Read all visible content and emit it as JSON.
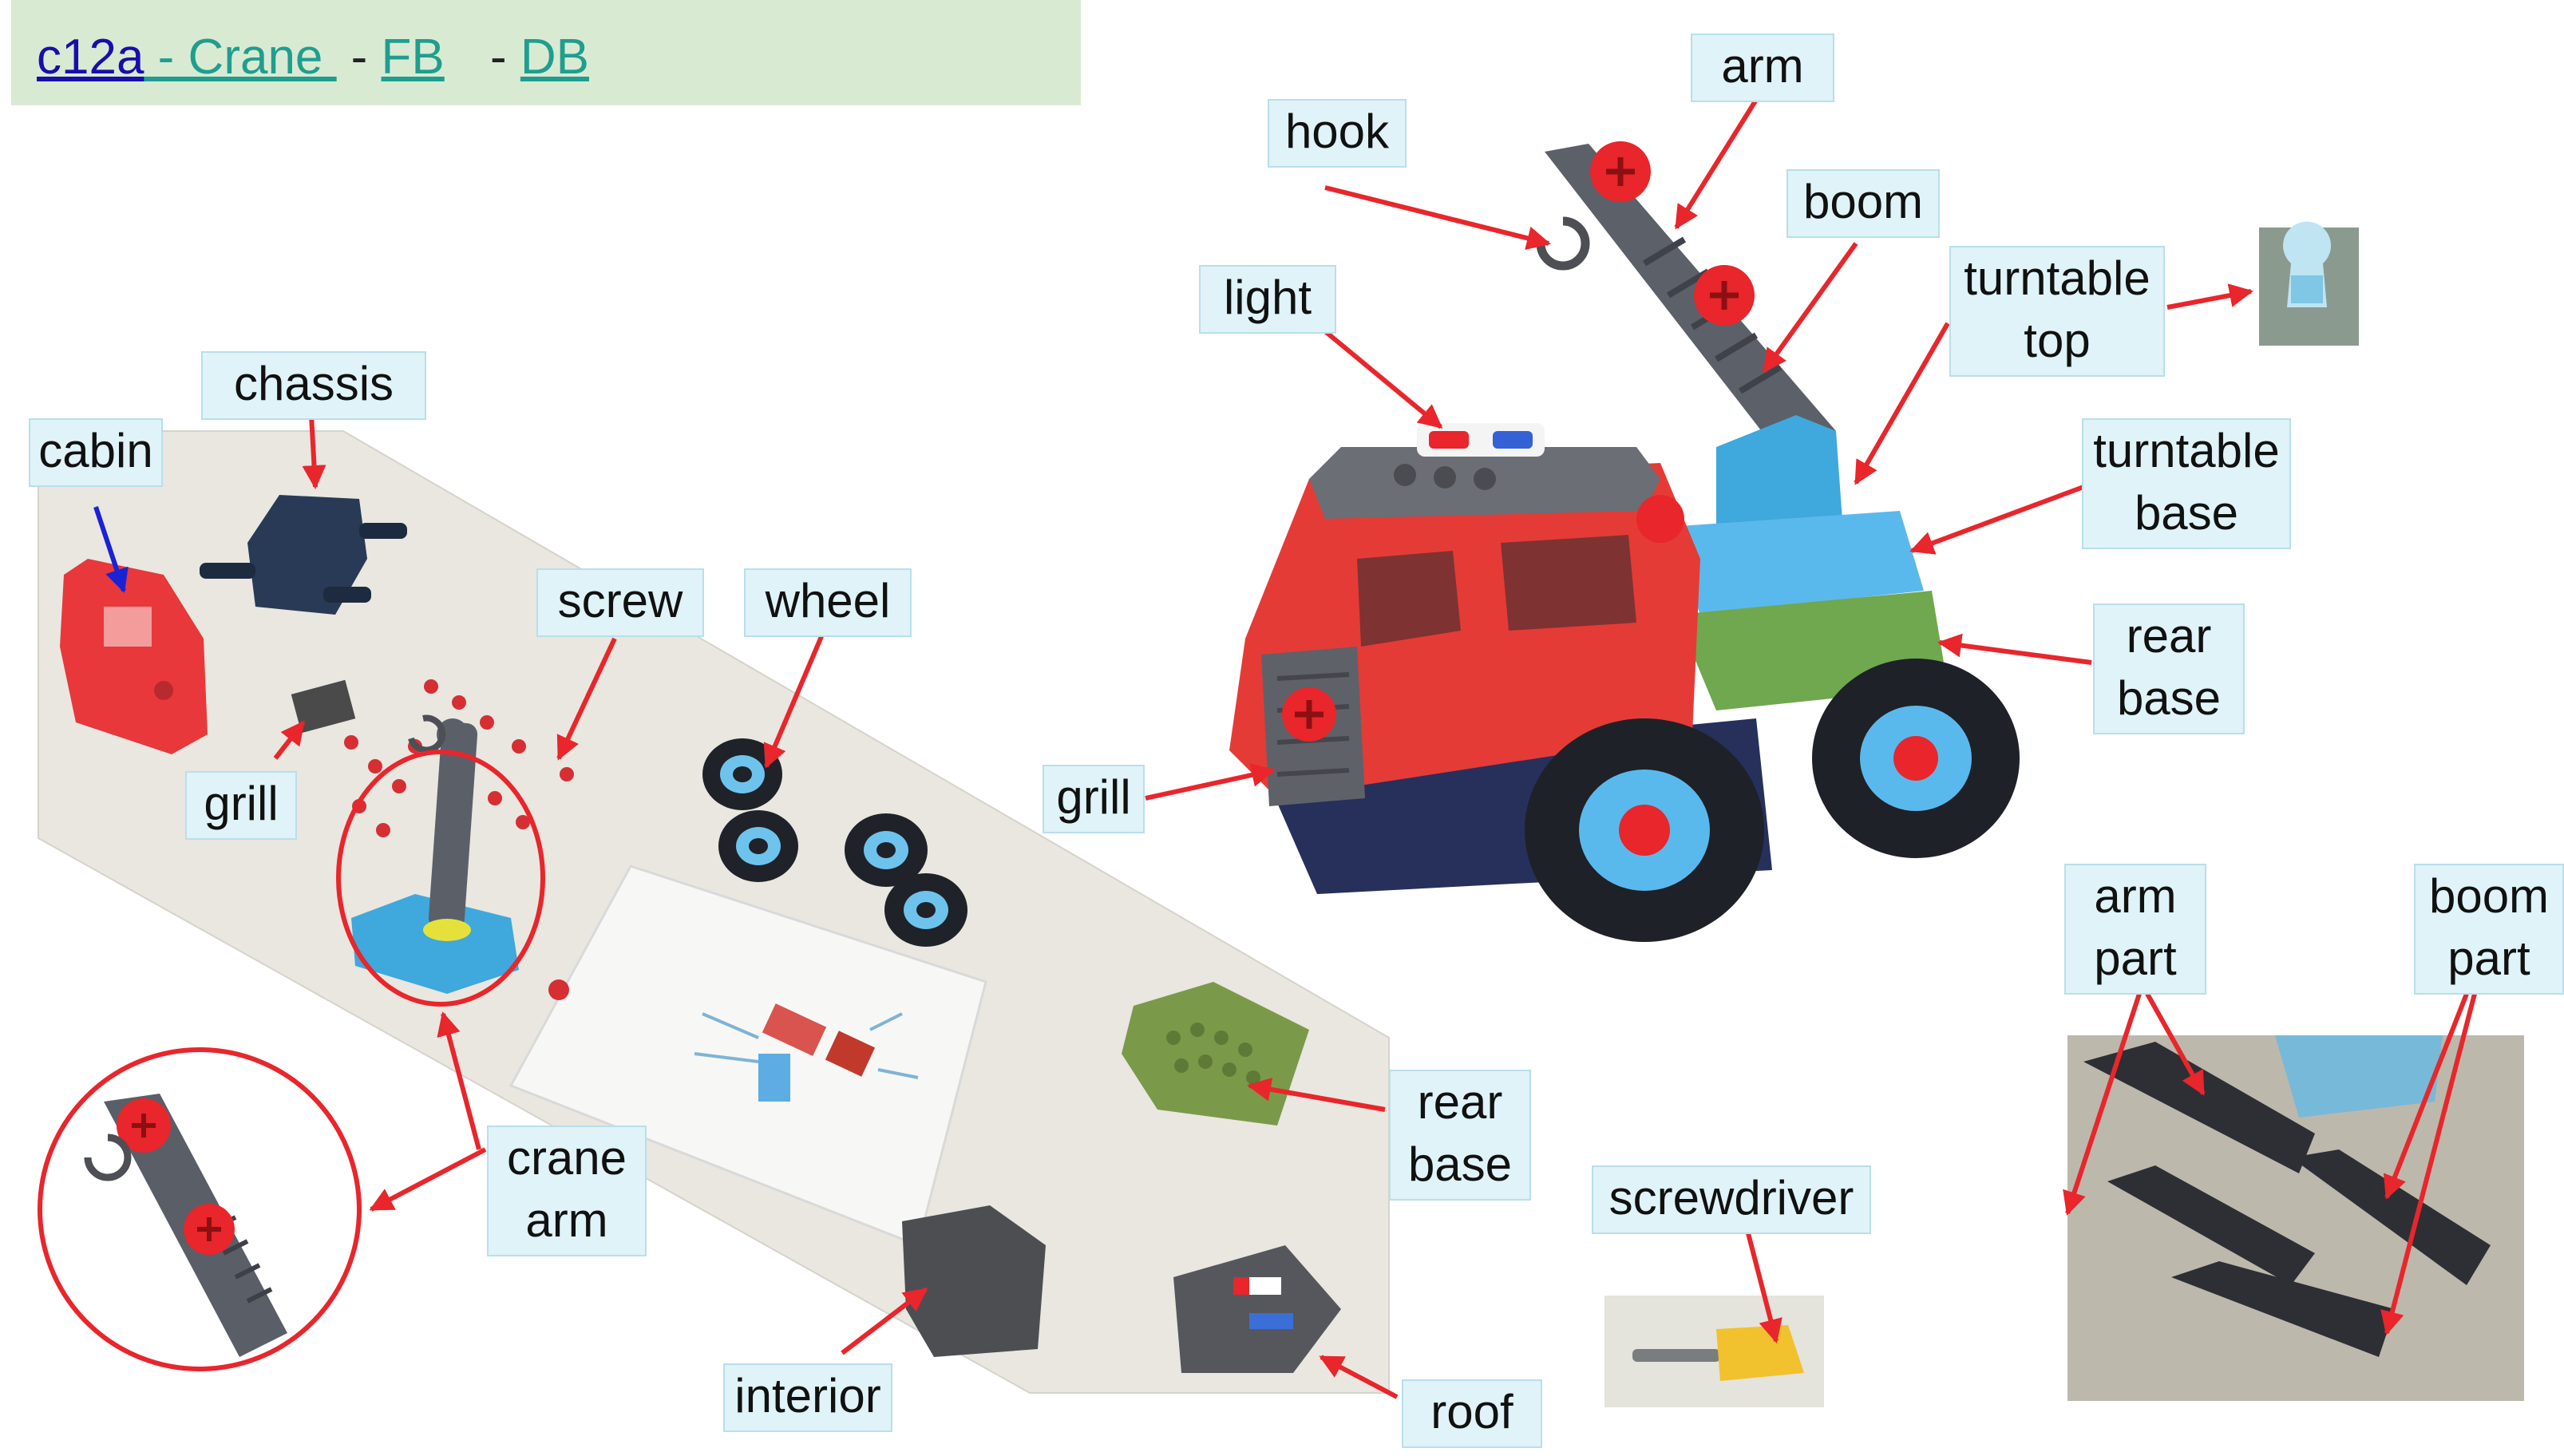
{
  "header": {
    "id_link": "c12a",
    "crane_link": " - Crane ",
    "sep1": " - ",
    "fb_link": "FB",
    "sep2": " - ",
    "db_link": "DB"
  },
  "labels": {
    "cabin": "cabin",
    "chassis": "chassis",
    "screw": "screw",
    "wheel": "wheel",
    "grill_left": "grill",
    "crane_arm_1": "crane",
    "crane_arm_2": "arm",
    "rear_base_left_1": "rear",
    "rear_base_left_2": "base",
    "interior": "interior",
    "roof": "roof",
    "hook": "hook",
    "arm": "arm",
    "boom": "boom",
    "light": "light",
    "turntable_top_1": "turntable",
    "turntable_top_2": "top",
    "turntable_base_1": "turntable",
    "turntable_base_2": "base",
    "rear_base_right_1": "rear",
    "rear_base_right_2": "base",
    "grill_right": "grill",
    "screwdriver": "screwdriver",
    "arm_part_1": "arm",
    "arm_part_2": "part",
    "boom_part_1": "boom",
    "boom_part_2": "part"
  },
  "colors": {
    "annotation_arrow": "#e8262b",
    "cabin_arrow": "#1a22d6",
    "label_fill": "#dff3f8",
    "header_fill": "#d9ead3"
  }
}
